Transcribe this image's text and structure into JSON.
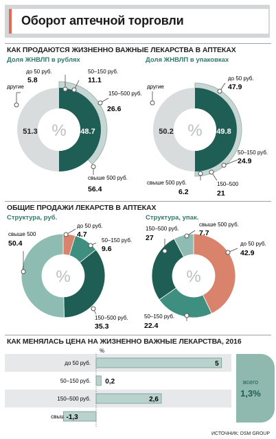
{
  "title": "Оборот аптечной торговли",
  "source": "ИСТОЧНИК: DSM GROUP",
  "percent_symbol": "%",
  "sections": {
    "s1": "КАК ПРОДАЮТСЯ ЖИЗНЕННО ВАЖНЫЕ ЛЕКАРСТВА В АПТЕКАХ",
    "s2": "ОБЩИЕ ПРОДАЖИ ЛЕКАРСТВ В АПТЕКАХ",
    "s3": "КАК МЕНЯЛАСЬ ЦЕНА НА ЖИЗНЕННО ВАЖНЫЕ ЛЕКАРСТВА, 2016"
  },
  "colors": {
    "dark_teal": "#1f5e55",
    "mid_teal": "#3f8f80",
    "light_teal": "#8fbcb2",
    "pale_gray": "#d9dcdd",
    "salmon": "#d9826c",
    "sage_strip": "#b9d3cc",
    "total_badge": "#8fb9ae"
  },
  "chart_data": [
    {
      "type": "pie",
      "subtitle": "Доля ЖНВЛП в рублях",
      "inner_label": "%",
      "slices": [
        {
          "label": "до 50 руб.",
          "value": 5.8
        },
        {
          "label": "50–150 руб.",
          "value": 11.1
        },
        {
          "label": "150–500 руб.",
          "value": 26.6
        },
        {
          "label": "свыше 500 руб.",
          "value": 56.4
        }
      ],
      "inner_values": {
        "другие": 51.3,
        "ЖНВЛП": 48.7
      },
      "other_label": "другие"
    },
    {
      "type": "pie",
      "subtitle": "Доля ЖНВЛП в упаковках",
      "inner_label": "%",
      "slices": [
        {
          "label": "до 50 руб.",
          "value": 47.9
        },
        {
          "label": "50–150 руб.",
          "value": 24.9
        },
        {
          "label": "150–500",
          "value": 21
        },
        {
          "label": "свыше 500 руб.",
          "value": 6.2
        }
      ],
      "inner_values": {
        "другие": 50.2,
        "ЖНВЛП": 49.8
      },
      "other_label": "другие"
    },
    {
      "type": "pie",
      "subtitle": "Структура, руб.",
      "inner_label": "%",
      "slices": [
        {
          "label": "до 50 руб.",
          "value": 4.7
        },
        {
          "label": "50–150 руб.",
          "value": 9.6
        },
        {
          "label": "150–500 руб.",
          "value": 35.3
        },
        {
          "label": "свыше 500",
          "value": 50.4
        }
      ]
    },
    {
      "type": "pie",
      "subtitle": "Структура, упак.",
      "inner_label": "%",
      "slices": [
        {
          "label": "до 50 руб.",
          "value": 42.9
        },
        {
          "label": "50–150 руб.",
          "value": 22.4
        },
        {
          "label": "150–500 руб.",
          "value": 27
        },
        {
          "label": "свыше 500 руб.",
          "value": 7.7
        }
      ]
    },
    {
      "type": "bar",
      "unit_label": "%",
      "categories": [
        "до 50 руб.",
        "50–150 руб.",
        "150–500 руб.",
        "свыше 500 руб."
      ],
      "values": [
        5,
        0.2,
        2.6,
        -1.3
      ],
      "value_labels": [
        "5",
        "0,2",
        "2,6",
        "-1,3"
      ],
      "xlim": [
        -1.6,
        5.0
      ],
      "total": {
        "title": "всего",
        "value": "1,3%"
      }
    }
  ]
}
